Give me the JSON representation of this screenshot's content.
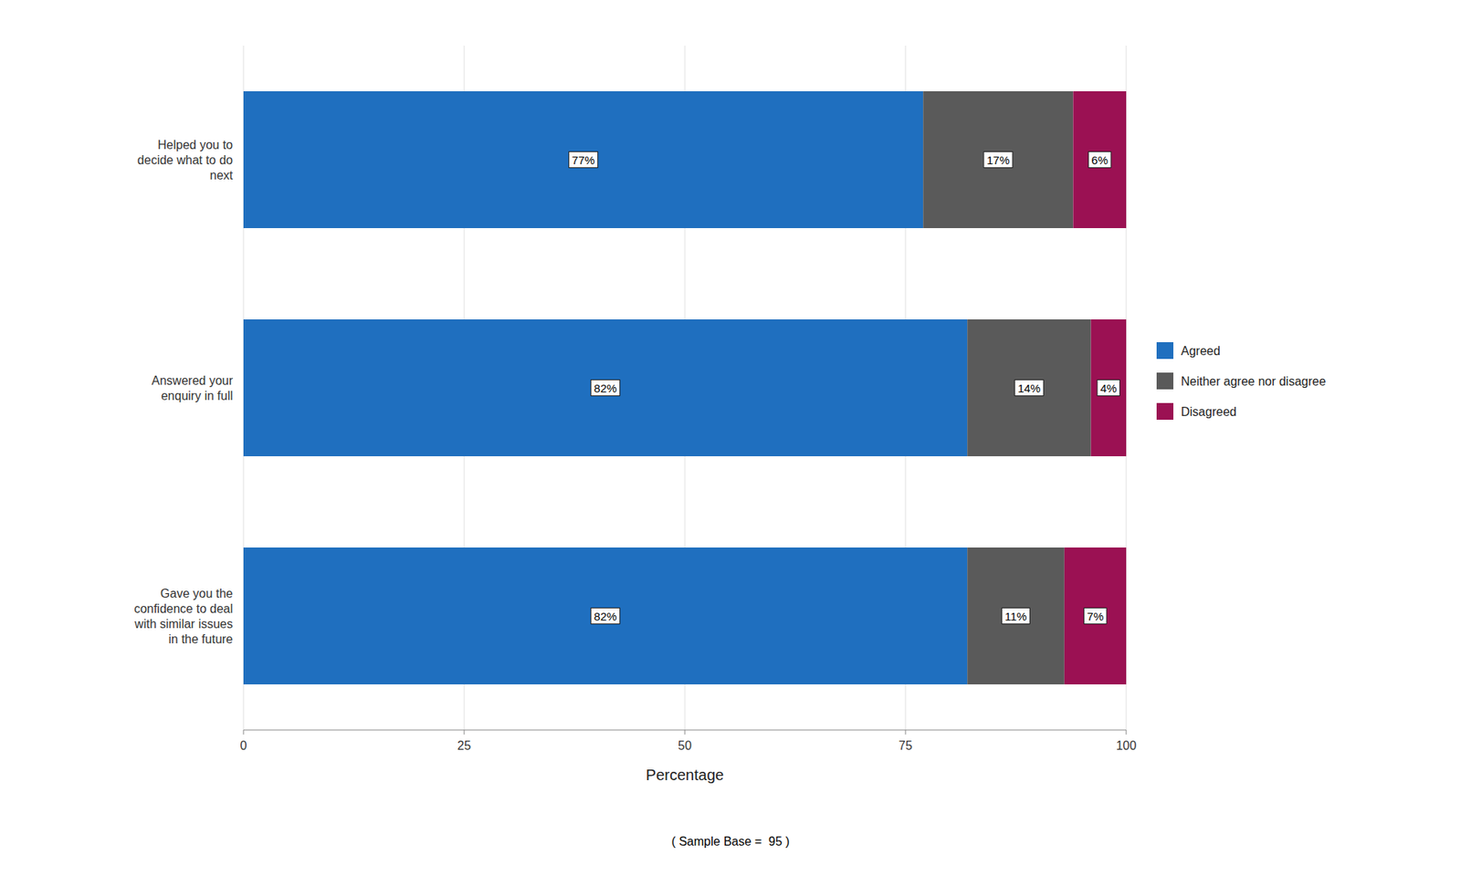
{
  "chart_data": {
    "type": "bar",
    "orientation": "horizontal",
    "stacked": true,
    "categories": [
      "Helped you to\ndecide what to do\nnext",
      "Answered your\nenquiry in full",
      "Gave you the\nconfidence to deal\nwith similar issues\nin the future"
    ],
    "series": [
      {
        "name": "Agreed",
        "color": "#1F6FBF",
        "values": [
          77,
          82,
          82
        ],
        "value_labels": [
          "77%",
          "82%",
          "82%"
        ]
      },
      {
        "name": "Neither agree nor disagree",
        "color": "#5a5a5a",
        "values": [
          17,
          14,
          11
        ],
        "value_labels": [
          "17%",
          "14%",
          "11%"
        ]
      },
      {
        "name": "Disagreed",
        "color": "#9B1153",
        "values": [
          6,
          4,
          7
        ],
        "value_labels": [
          "6%",
          "4%",
          "7%"
        ]
      }
    ],
    "xlabel": "Percentage",
    "xlim": [
      0,
      100
    ],
    "xticks": [
      0,
      25,
      50,
      75,
      100
    ],
    "grid": true,
    "data_labels": true,
    "legend": "right",
    "annotations": [
      "( Sample Base =  95 )"
    ]
  }
}
